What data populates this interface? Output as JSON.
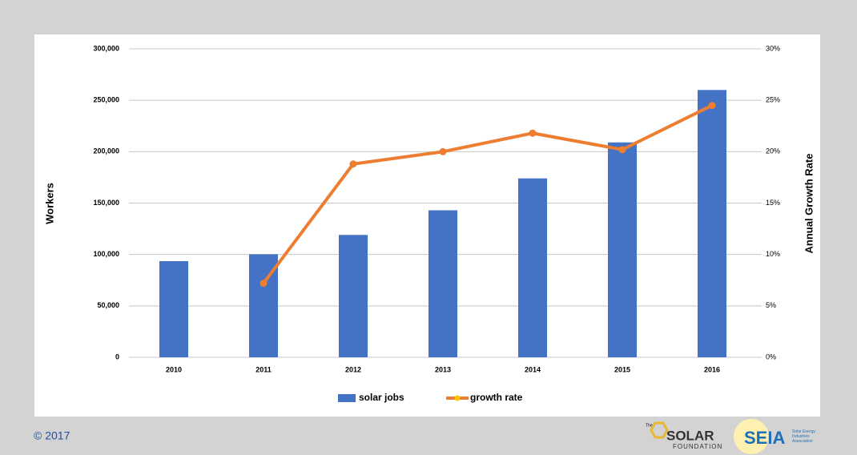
{
  "chart_data": {
    "type": "bar_line",
    "categories": [
      "2010",
      "2011",
      "2012",
      "2013",
      "2014",
      "2015",
      "2016"
    ],
    "series": [
      {
        "name": "solar jobs",
        "type": "bar",
        "color": "#4472c4",
        "values": [
          93500,
          100200,
          119000,
          143000,
          174000,
          209000,
          260000
        ]
      },
      {
        "name": "growth rate",
        "type": "line",
        "color": "#ed7d31",
        "marker_color": "#ffc000",
        "axis": "y2",
        "values": [
          null,
          7.2,
          18.8,
          20.0,
          21.8,
          20.2,
          24.5
        ]
      }
    ],
    "ylabel": "Workers",
    "y2label": "Annual Growth Rate",
    "ylim": [
      0,
      300000
    ],
    "yticks": [
      0,
      {
        "value": 50000,
        "label": "50,000"
      },
      {
        "value": 100000,
        "label": "100,000"
      },
      {
        "value": 150000,
        "label": "150,000"
      },
      {
        "value": 200000,
        "label": "200,000"
      },
      {
        "value": 250000,
        "label": "250,000"
      },
      {
        "value": 300000,
        "label": "300,000"
      }
    ],
    "y2lim": [
      0,
      30
    ],
    "y2ticks": [
      {
        "value": 0,
        "label": "0%"
      },
      {
        "value": 5,
        "label": "5%"
      },
      {
        "value": 10,
        "label": "10%"
      },
      {
        "value": 15,
        "label": "15%"
      },
      {
        "value": 20,
        "label": "20%"
      },
      {
        "value": 25,
        "label": "25%"
      },
      {
        "value": 30,
        "label": "30%"
      }
    ],
    "grid": true,
    "legend": "bottom"
  },
  "footer": {
    "copyright": "© 2017",
    "logo1_small": "The",
    "logo1_main": "SOLAR",
    "logo1_sub": "FOUNDATION",
    "logo2_main": "SEIA",
    "logo2_sub": "Solar Energy Industries Association"
  }
}
